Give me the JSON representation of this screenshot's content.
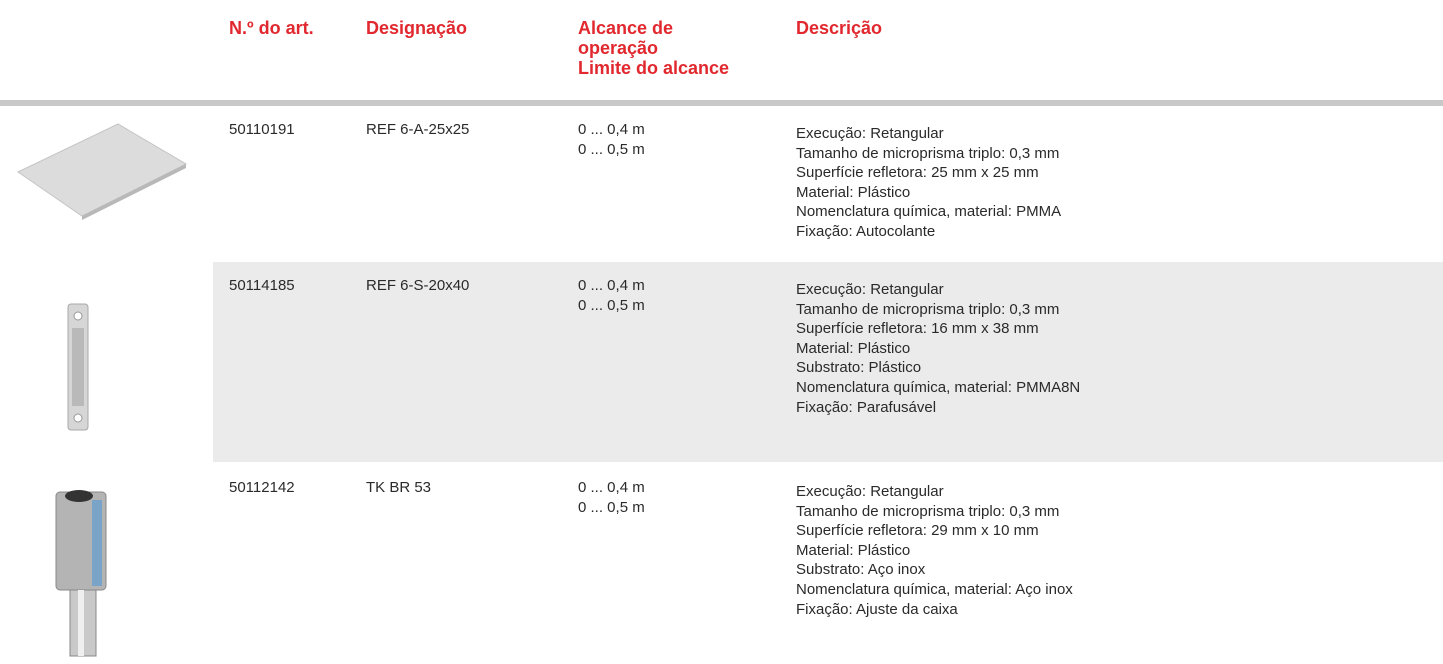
{
  "header": {
    "columns": [
      {
        "lines": [
          "N.º do art."
        ]
      },
      {
        "lines": [
          "Designação"
        ]
      },
      {
        "lines": [
          "Alcance de",
          "operação",
          "Limite do alcance"
        ]
      },
      {
        "lines": [
          "Descrição"
        ]
      }
    ]
  },
  "table": {
    "rows": [
      {
        "art": "50110191",
        "designation": "REF 6-A-25x25",
        "range": [
          "0 ... 0,4 m",
          "0 ... 0,5 m"
        ],
        "description": [
          "Execução: Retangular",
          "Tamanho de microprisma triplo: 0,3 mm",
          "Superfície refletora: 25 mm x 25 mm",
          "Material: Plástico",
          "Nomenclatura química, material: PMMA",
          "Fixação: Autocolante"
        ]
      },
      {
        "art": "50114185",
        "designation": "REF 6-S-20x40",
        "range": [
          "0 ... 0,4 m",
          "0 ... 0,5 m"
        ],
        "description": [
          "Execução: Retangular",
          "Tamanho de microprisma triplo: 0,3 mm",
          "Superfície refletora: 16 mm x 38 mm",
          "Material: Plástico",
          "Substrato: Plástico",
          "Nomenclatura química, material: PMMA8N",
          "Fixação: Parafusável"
        ]
      },
      {
        "art": "50112142",
        "designation": "TK BR 53",
        "range": [
          "0 ... 0,4 m",
          "0 ... 0,5 m"
        ],
        "description": [
          "Execução: Retangular",
          "Tamanho de microprisma triplo: 0,3 mm",
          "Superfície refletora: 29 mm x 10 mm",
          "Material: Plástico",
          "Substrato: Aço inox",
          "Nomenclatura química, material: Aço inox",
          "Fixação: Ajuste da caixa"
        ]
      }
    ]
  }
}
